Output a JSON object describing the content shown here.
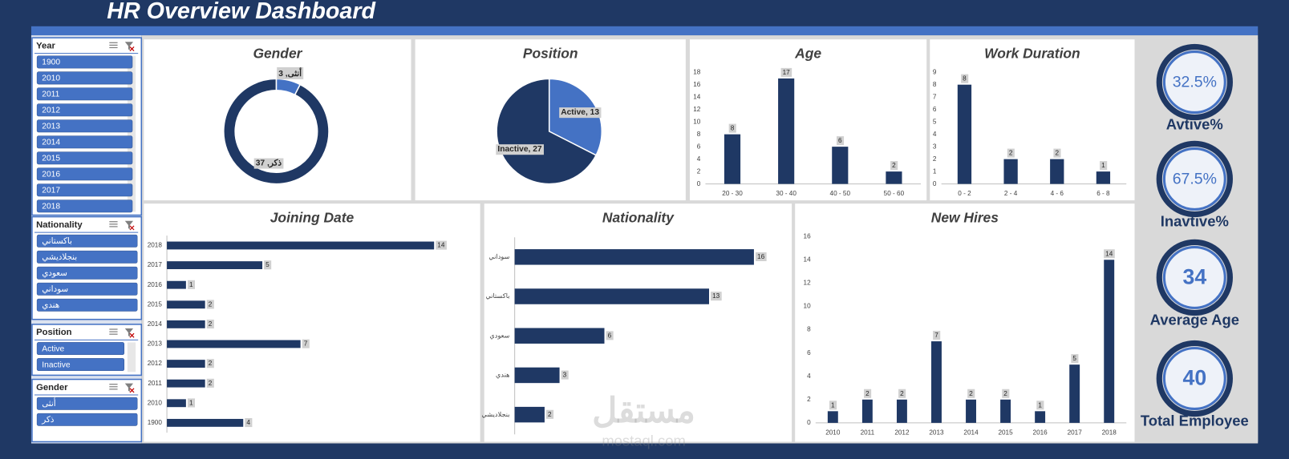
{
  "header": {
    "title": "HR Overview Dashboard"
  },
  "slicers": [
    {
      "title": "Year",
      "items": [
        "1900",
        "2010",
        "2011",
        "2012",
        "2013",
        "2014",
        "2015",
        "2016",
        "2017",
        "2018"
      ]
    },
    {
      "title": "Nationality",
      "items": [
        "باكستاني",
        "بنجلاديشي",
        "سعودي",
        "سوداني",
        "هندي"
      ]
    },
    {
      "title": "Position",
      "items": [
        "Active",
        "Inactive"
      ]
    },
    {
      "title": "Gender",
      "items": [
        "أنثى",
        "ذكر"
      ]
    }
  ],
  "chart_data": [
    {
      "type": "donut",
      "title": "Gender",
      "categories": [
        "أنثى",
        "ذكر"
      ],
      "values": [
        3,
        37
      ],
      "value_labels": [
        "أنثى, 3",
        "ذكر, 37"
      ],
      "colors": [
        "#4472c4",
        "#1f3864"
      ]
    },
    {
      "type": "pie",
      "title": "Position",
      "categories": [
        "Active",
        "Inactive"
      ],
      "values": [
        13,
        27
      ],
      "value_labels": [
        "Active, 13",
        "Inactive, 27"
      ],
      "colors": [
        "#4472c4",
        "#1f3864"
      ]
    },
    {
      "type": "bar",
      "title": "Age",
      "categories": [
        "20 - 30",
        "30 - 40",
        "40 - 50",
        "50 - 60"
      ],
      "values": [
        8,
        17,
        6,
        2
      ],
      "color": "#1f3864",
      "ylim": [
        0,
        18
      ],
      "yticks": [
        0,
        2,
        4,
        6,
        8,
        10,
        12,
        14,
        16,
        18
      ],
      "grid": false
    },
    {
      "type": "bar",
      "title": "Work Duration",
      "categories": [
        "0 - 2",
        "2 - 4",
        "4 - 6",
        "6 - 8"
      ],
      "values": [
        8,
        2,
        2,
        1
      ],
      "color": "#1f3864",
      "ylim": [
        0,
        9
      ],
      "yticks": [
        0,
        1,
        2,
        3,
        4,
        5,
        6,
        7,
        8,
        9
      ],
      "grid": false
    },
    {
      "type": "barh",
      "title": "Joining Date",
      "categories": [
        "2018",
        "2017",
        "2016",
        "2015",
        "2014",
        "2013",
        "2012",
        "2011",
        "2010",
        "1900"
      ],
      "values": [
        14,
        5,
        1,
        2,
        2,
        7,
        2,
        2,
        1,
        4
      ],
      "color": "#1f3864"
    },
    {
      "type": "barh",
      "title": "Nationality",
      "categories": [
        "سوداني",
        "باكستاني",
        "سعودي",
        "هندي",
        "بنجلاديشي"
      ],
      "values": [
        16,
        13,
        6,
        3,
        2
      ],
      "color": "#1f3864"
    },
    {
      "type": "bar",
      "title": "New Hires",
      "categories": [
        "2010",
        "2011",
        "2012",
        "2013",
        "2014",
        "2015",
        "2016",
        "2017",
        "2018"
      ],
      "values": [
        1,
        2,
        2,
        7,
        2,
        2,
        1,
        5,
        14
      ],
      "color": "#1f3864",
      "ylim": [
        0,
        16
      ],
      "yticks": [
        0,
        2,
        4,
        6,
        8,
        10,
        12,
        14,
        16
      ],
      "grid": false
    }
  ],
  "kpis": [
    {
      "value": "32.5%",
      "label": "Avtive%"
    },
    {
      "value": "67.5%",
      "label": "Inavtive%"
    },
    {
      "value": "34",
      "label": "Average Age"
    },
    {
      "value": "40",
      "label": "Total Employee"
    }
  ],
  "watermark": [
    "مستقل",
    "mostaql.com"
  ]
}
